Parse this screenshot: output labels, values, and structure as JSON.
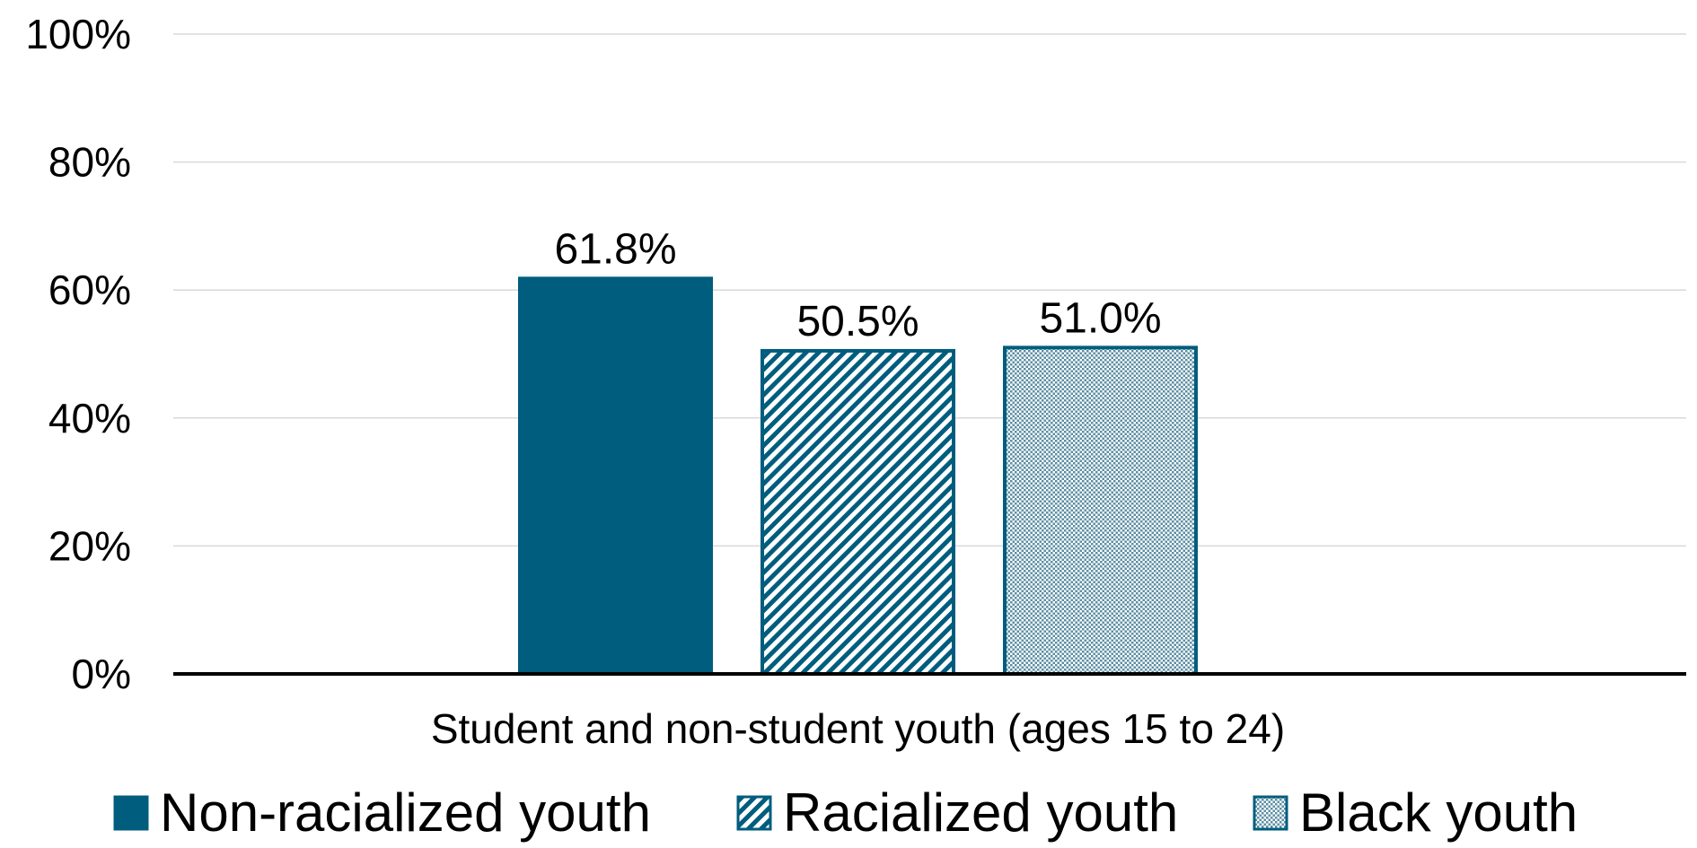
{
  "chart_data": {
    "type": "bar",
    "categories": [
      "Student and non-student youth (ages 15 to 24)"
    ],
    "series": [
      {
        "name": "Non-racialized youth",
        "values": [
          61.8
        ],
        "label": "61.8%",
        "pattern": "solid"
      },
      {
        "name": "Racialized youth",
        "values": [
          50.5
        ],
        "label": "50.5%",
        "pattern": "diagonal-hatch"
      },
      {
        "name": "Black youth",
        "values": [
          51.0
        ],
        "label": "51.0%",
        "pattern": "dots"
      }
    ],
    "yticks": [
      "0%",
      "20%",
      "40%",
      "60%",
      "80%",
      "100%"
    ],
    "ytick_values": [
      0,
      20,
      40,
      60,
      80,
      100
    ],
    "ylim": [
      0,
      100
    ],
    "grid": true,
    "legend": "bottom",
    "colors": {
      "bar": "#005d7d",
      "grid": "#d9d9d9",
      "axis": "#000000"
    }
  }
}
